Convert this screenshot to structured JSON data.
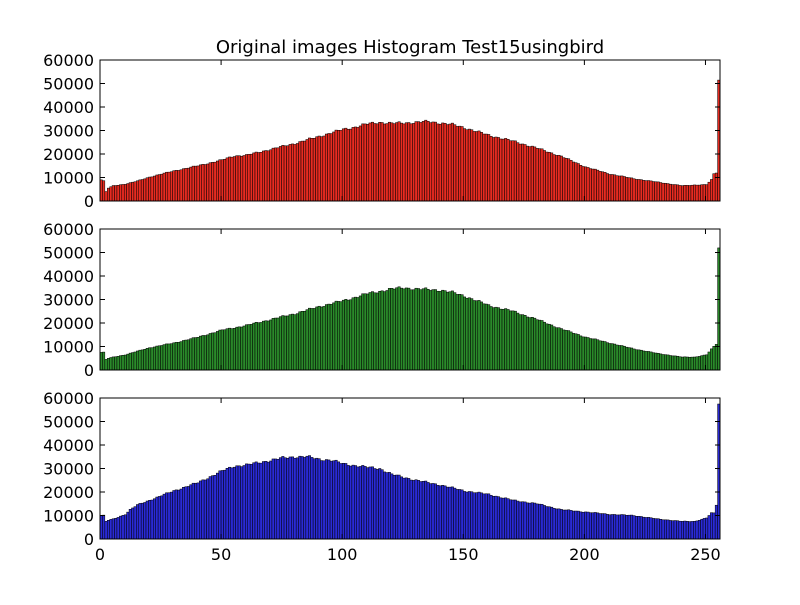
{
  "chart_data": {
    "title": "Original images Histogram Test15usingbird",
    "xlim": [
      0,
      256
    ],
    "ylim": [
      0,
      60000
    ],
    "xticks": [
      0,
      50,
      100,
      150,
      200,
      250
    ],
    "yticks": [
      0,
      10000,
      20000,
      30000,
      40000,
      50000,
      60000
    ],
    "xticklabels": [
      "0",
      "50",
      "100",
      "150",
      "200",
      "250"
    ],
    "yticklabels": [
      "0",
      "10000",
      "20000",
      "30000",
      "40000",
      "50000",
      "60000"
    ],
    "grid": false,
    "subplots": [
      {
        "type": "bar",
        "channel": "red",
        "color": "#e82b21",
        "show_xticklabels": false,
        "anchors": [
          [
            0,
            9000
          ],
          [
            1,
            8500
          ],
          [
            2,
            4000
          ],
          [
            3,
            5500
          ],
          [
            5,
            6500
          ],
          [
            10,
            7200
          ],
          [
            15,
            8500
          ],
          [
            20,
            10200
          ],
          [
            25,
            11500
          ],
          [
            30,
            12800
          ],
          [
            40,
            15000
          ],
          [
            50,
            17500
          ],
          [
            55,
            19200
          ],
          [
            60,
            19500
          ],
          [
            70,
            22000
          ],
          [
            80,
            24500
          ],
          [
            90,
            27500
          ],
          [
            100,
            30500
          ],
          [
            105,
            31500
          ],
          [
            110,
            32800
          ],
          [
            115,
            33500
          ],
          [
            120,
            33000
          ],
          [
            130,
            33500
          ],
          [
            135,
            33800
          ],
          [
            140,
            33200
          ],
          [
            145,
            32500
          ],
          [
            150,
            31200
          ],
          [
            160,
            28000
          ],
          [
            170,
            25500
          ],
          [
            180,
            22500
          ],
          [
            190,
            19000
          ],
          [
            200,
            14500
          ],
          [
            210,
            11500
          ],
          [
            220,
            9500
          ],
          [
            230,
            8000
          ],
          [
            240,
            6500
          ],
          [
            245,
            6800
          ],
          [
            250,
            7000
          ],
          [
            252,
            9000
          ],
          [
            253,
            11500
          ],
          [
            254,
            12000
          ],
          [
            255,
            51500
          ]
        ]
      },
      {
        "type": "bar",
        "channel": "green",
        "color": "#2a8a2a",
        "show_xticklabels": false,
        "anchors": [
          [
            0,
            7500
          ],
          [
            1,
            7500
          ],
          [
            2,
            4500
          ],
          [
            3,
            5000
          ],
          [
            5,
            5500
          ],
          [
            10,
            6500
          ],
          [
            15,
            8000
          ],
          [
            20,
            9500
          ],
          [
            25,
            10500
          ],
          [
            30,
            11500
          ],
          [
            40,
            14000
          ],
          [
            50,
            17000
          ],
          [
            55,
            18000
          ],
          [
            60,
            19000
          ],
          [
            70,
            21500
          ],
          [
            80,
            24000
          ],
          [
            90,
            27000
          ],
          [
            100,
            29500
          ],
          [
            110,
            32500
          ],
          [
            115,
            33500
          ],
          [
            120,
            34500
          ],
          [
            125,
            35000
          ],
          [
            130,
            34500
          ],
          [
            140,
            34000
          ],
          [
            145,
            33000
          ],
          [
            150,
            31500
          ],
          [
            160,
            27500
          ],
          [
            170,
            25000
          ],
          [
            180,
            21500
          ],
          [
            190,
            17500
          ],
          [
            200,
            14000
          ],
          [
            210,
            11500
          ],
          [
            220,
            9000
          ],
          [
            230,
            7000
          ],
          [
            240,
            5500
          ],
          [
            245,
            5500
          ],
          [
            250,
            6500
          ],
          [
            253,
            10000
          ],
          [
            254,
            11000
          ],
          [
            255,
            52000
          ]
        ]
      },
      {
        "type": "bar",
        "channel": "blue",
        "color": "#2a2ad6",
        "show_xticklabels": true,
        "anchors": [
          [
            0,
            10000
          ],
          [
            1,
            10000
          ],
          [
            2,
            7500
          ],
          [
            3,
            8000
          ],
          [
            5,
            8500
          ],
          [
            10,
            10500
          ],
          [
            12,
            12500
          ],
          [
            15,
            14500
          ],
          [
            20,
            16500
          ],
          [
            25,
            18500
          ],
          [
            30,
            20500
          ],
          [
            40,
            24000
          ],
          [
            45,
            26500
          ],
          [
            50,
            29000
          ],
          [
            55,
            31000
          ],
          [
            60,
            31500
          ],
          [
            70,
            33500
          ],
          [
            75,
            34500
          ],
          [
            80,
            35000
          ],
          [
            85,
            35000
          ],
          [
            90,
            34000
          ],
          [
            95,
            33500
          ],
          [
            100,
            32000
          ],
          [
            110,
            30500
          ],
          [
            115,
            30000
          ],
          [
            120,
            27500
          ],
          [
            130,
            25000
          ],
          [
            140,
            23000
          ],
          [
            150,
            20500
          ],
          [
            160,
            19000
          ],
          [
            170,
            16500
          ],
          [
            180,
            15000
          ],
          [
            190,
            12500
          ],
          [
            200,
            11500
          ],
          [
            210,
            10500
          ],
          [
            220,
            10000
          ],
          [
            230,
            8500
          ],
          [
            240,
            7500
          ],
          [
            245,
            7500
          ],
          [
            250,
            9000
          ],
          [
            252,
            11000
          ],
          [
            253,
            11000
          ],
          [
            254,
            14500
          ],
          [
            255,
            57500
          ]
        ]
      }
    ]
  }
}
